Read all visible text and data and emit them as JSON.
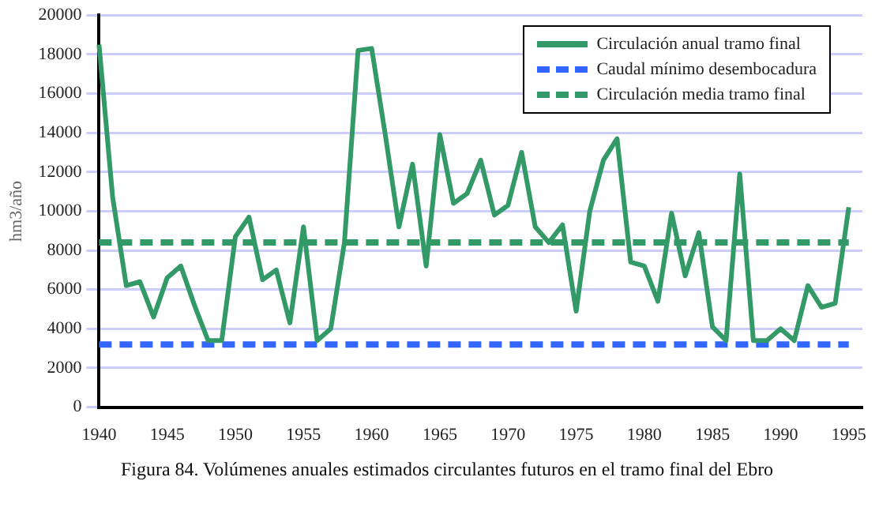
{
  "chart_data": {
    "type": "line",
    "ylabel": "hm3/año",
    "annotations": [
      "Figura 84. Volúmenes anuales estimados circulantes futuros en el tramo final del Ebro"
    ],
    "x": [
      1940,
      1941,
      1942,
      1943,
      1944,
      1945,
      1946,
      1947,
      1948,
      1949,
      1950,
      1951,
      1952,
      1953,
      1954,
      1955,
      1956,
      1957,
      1958,
      1959,
      1960,
      1961,
      1962,
      1963,
      1964,
      1965,
      1966,
      1967,
      1968,
      1969,
      1970,
      1971,
      1972,
      1973,
      1974,
      1975,
      1976,
      1977,
      1978,
      1979,
      1980,
      1981,
      1982,
      1983,
      1984,
      1985,
      1986,
      1987,
      1988,
      1989,
      1990,
      1991,
      1992,
      1993,
      1994,
      1995
    ],
    "series": [
      {
        "name": "Circulación anual tramo final",
        "color": "#339966",
        "line_style": "solid",
        "values": [
          18500,
          10700,
          6200,
          6400,
          4600,
          6600,
          7200,
          5200,
          3400,
          3400,
          8700,
          9700,
          6500,
          7000,
          4300,
          9200,
          3400,
          4000,
          8400,
          18200,
          18300,
          13900,
          9200,
          12400,
          7200,
          13900,
          10400,
          10900,
          12600,
          9800,
          10300,
          13000,
          9200,
          8400,
          9300,
          4900,
          10000,
          12600,
          13700,
          7400,
          7200,
          5400,
          9900,
          6700,
          8900,
          4100,
          3400,
          11900,
          3400,
          3400,
          4000,
          3400,
          6200,
          5100,
          5300,
          10200
        ]
      },
      {
        "name": "Caudal mínimo desembocadura",
        "color": "#3366ff",
        "line_style": "dashed",
        "values": [
          3200,
          3200,
          3200,
          3200,
          3200,
          3200,
          3200,
          3200,
          3200,
          3200,
          3200,
          3200,
          3200,
          3200,
          3200,
          3200,
          3200,
          3200,
          3200,
          3200,
          3200,
          3200,
          3200,
          3200,
          3200,
          3200,
          3200,
          3200,
          3200,
          3200,
          3200,
          3200,
          3200,
          3200,
          3200,
          3200,
          3200,
          3200,
          3200,
          3200,
          3200,
          3200,
          3200,
          3200,
          3200,
          3200,
          3200,
          3200,
          3200,
          3200,
          3200,
          3200,
          3200,
          3200,
          3200,
          3200
        ]
      },
      {
        "name": "Circulación media tramo final",
        "color": "#339966",
        "line_style": "dashed",
        "values": [
          8400,
          8400,
          8400,
          8400,
          8400,
          8400,
          8400,
          8400,
          8400,
          8400,
          8400,
          8400,
          8400,
          8400,
          8400,
          8400,
          8400,
          8400,
          8400,
          8400,
          8400,
          8400,
          8400,
          8400,
          8400,
          8400,
          8400,
          8400,
          8400,
          8400,
          8400,
          8400,
          8400,
          8400,
          8400,
          8400,
          8400,
          8400,
          8400,
          8400,
          8400,
          8400,
          8400,
          8400,
          8400,
          8400,
          8400,
          8400,
          8400,
          8400,
          8400,
          8400,
          8400,
          8400,
          8400,
          8400
        ]
      }
    ],
    "xlim": [
      1940,
      1996
    ],
    "xticks": [
      1940,
      1945,
      1950,
      1955,
      1960,
      1965,
      1970,
      1975,
      1980,
      1985,
      1990,
      1995
    ],
    "ylim": [
      0,
      20000
    ],
    "yticks": [
      0,
      2000,
      4000,
      6000,
      8000,
      10000,
      12000,
      14000,
      16000,
      18000,
      20000
    ],
    "grid": "y",
    "legend": "top right",
    "marker": "none"
  }
}
